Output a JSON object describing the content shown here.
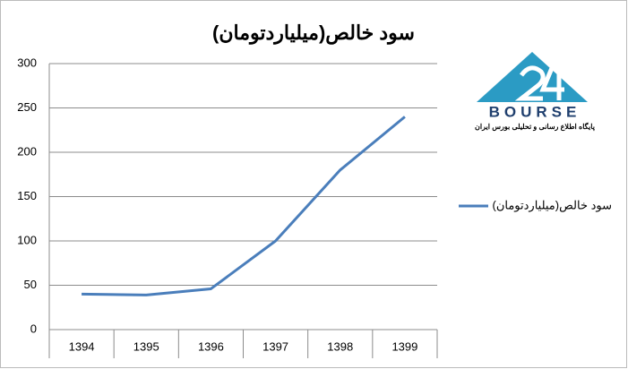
{
  "chart_data": {
    "type": "line",
    "title": "سود خالص(میلیاردتومان)",
    "categories": [
      "1394",
      "1395",
      "1396",
      "1397",
      "1398",
      "1399"
    ],
    "series": [
      {
        "name": "سود خالص(میلیاردتومان)",
        "color": "#4a7ebb",
        "values": [
          40,
          39,
          46,
          100,
          180,
          240
        ]
      }
    ],
    "ylim": [
      0,
      300
    ],
    "yticks": [
      0,
      50,
      100,
      150,
      200,
      250,
      300
    ],
    "grid": true,
    "legend": "right"
  },
  "logo": {
    "brand": "BOURSE",
    "tagline": "پایگاه اطلاع رسانی و تحلیلی بورس ایران"
  }
}
